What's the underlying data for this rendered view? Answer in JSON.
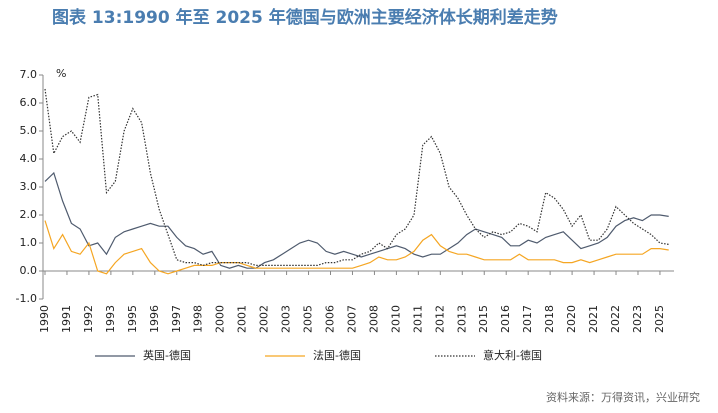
{
  "chart_data": {
    "type": "line",
    "title": "图表 13:1990 年至 2025 年德国与欧洲主要经济体长期利差走势",
    "y_unit": "%",
    "source": "资料来源：万得资讯，兴业研究",
    "x": [
      1990,
      1990.5,
      1991,
      1991.5,
      1992,
      1992.5,
      1993,
      1993.5,
      1994,
      1994.5,
      1995,
      1995.5,
      1996,
      1996.5,
      1997,
      1997.5,
      1998,
      1998.5,
      1999,
      1999.5,
      2000,
      2000.5,
      2001,
      2001.5,
      2002,
      2002.5,
      2003,
      2003.5,
      2004,
      2004.5,
      2005,
      2005.5,
      2006,
      2006.5,
      2007,
      2007.5,
      2008,
      2008.5,
      2009,
      2009.5,
      2010,
      2010.5,
      2011,
      2011.5,
      2012,
      2012.5,
      2013,
      2013.5,
      2014,
      2014.5,
      2015,
      2015.5,
      2016,
      2016.5,
      2017,
      2017.5,
      2018,
      2018.5,
      2019,
      2019.5,
      2020,
      2020.5,
      2021,
      2021.5,
      2022,
      2022.5,
      2023,
      2023.5,
      2024,
      2024.5,
      2025,
      2025.5
    ],
    "series": [
      {
        "name": "英国-德国",
        "color": "#4f5b6e",
        "dash": "none",
        "values": [
          3.2,
          3.5,
          2.5,
          1.7,
          1.5,
          0.9,
          1.0,
          0.6,
          1.2,
          1.4,
          1.5,
          1.6,
          1.7,
          1.6,
          1.6,
          1.2,
          0.9,
          0.8,
          0.6,
          0.7,
          0.2,
          0.1,
          0.2,
          0.1,
          0.1,
          0.3,
          0.4,
          0.6,
          0.8,
          1.0,
          1.1,
          1.0,
          0.7,
          0.6,
          0.7,
          0.6,
          0.5,
          0.6,
          0.7,
          0.8,
          0.9,
          0.8,
          0.6,
          0.5,
          0.6,
          0.6,
          0.8,
          1.0,
          1.3,
          1.5,
          1.4,
          1.3,
          1.2,
          0.9,
          0.9,
          1.1,
          1.0,
          1.2,
          1.3,
          1.4,
          1.1,
          0.8,
          0.9,
          1.0,
          1.2,
          1.6,
          1.8,
          1.9,
          1.8,
          2.0,
          2.0,
          1.95
        ]
      },
      {
        "name": "法国-德国",
        "color": "#f5a623",
        "dash": "none",
        "values": [
          1.8,
          0.8,
          1.3,
          0.7,
          0.6,
          1.0,
          0.0,
          -0.1,
          0.3,
          0.6,
          0.7,
          0.8,
          0.3,
          0.0,
          -0.1,
          0.0,
          0.1,
          0.2,
          0.2,
          0.2,
          0.3,
          0.3,
          0.3,
          0.2,
          0.1,
          0.1,
          0.1,
          0.1,
          0.1,
          0.1,
          0.1,
          0.1,
          0.1,
          0.1,
          0.1,
          0.1,
          0.2,
          0.3,
          0.5,
          0.4,
          0.4,
          0.5,
          0.7,
          1.1,
          1.3,
          0.9,
          0.7,
          0.6,
          0.6,
          0.5,
          0.4,
          0.4,
          0.4,
          0.4,
          0.6,
          0.4,
          0.4,
          0.4,
          0.4,
          0.3,
          0.3,
          0.4,
          0.3,
          0.4,
          0.5,
          0.6,
          0.6,
          0.6,
          0.6,
          0.8,
          0.8,
          0.75
        ]
      },
      {
        "name": "意大利-德国",
        "color": "#333333",
        "dash": "1.5 1.5",
        "values": [
          6.5,
          4.2,
          4.8,
          5.0,
          4.6,
          6.2,
          6.3,
          2.8,
          3.2,
          5.0,
          5.8,
          5.3,
          3.5,
          2.2,
          1.3,
          0.4,
          0.3,
          0.3,
          0.2,
          0.3,
          0.3,
          0.3,
          0.3,
          0.3,
          0.2,
          0.2,
          0.2,
          0.2,
          0.2,
          0.2,
          0.2,
          0.2,
          0.3,
          0.3,
          0.4,
          0.4,
          0.6,
          0.7,
          1.0,
          0.8,
          1.3,
          1.5,
          2.0,
          4.5,
          4.8,
          4.2,
          3.0,
          2.6,
          2.0,
          1.5,
          1.2,
          1.4,
          1.3,
          1.4,
          1.7,
          1.6,
          1.4,
          2.8,
          2.6,
          2.2,
          1.6,
          2.0,
          1.1,
          1.1,
          1.5,
          2.3,
          2.0,
          1.7,
          1.5,
          1.3,
          1.0,
          0.95
        ]
      }
    ],
    "xlim": [
      1990,
      2025.8
    ],
    "xticks": [
      1990,
      {
        "value": 1991.25,
        "label": "1991"
      },
      {
        "value": 1992.5,
        "label": "1992"
      },
      {
        "value": 1993.75,
        "label": "1993"
      },
      1995,
      {
        "value": 1996.25,
        "label": "1996"
      },
      {
        "value": 1997.5,
        "label": "1997"
      },
      {
        "value": 1998.75,
        "label": "1998"
      },
      2000,
      {
        "value": 2001.25,
        "label": "2001"
      },
      {
        "value": 2002.5,
        "label": "2002"
      },
      {
        "value": 2003.75,
        "label": "2003"
      },
      2005,
      {
        "value": 2006.25,
        "label": "2006"
      },
      {
        "value": 2007.5,
        "label": "2007"
      },
      {
        "value": 2008.75,
        "label": "2008"
      },
      2010,
      {
        "value": 2011.25,
        "label": "2011"
      },
      {
        "value": 2012.5,
        "label": "2012"
      },
      {
        "value": 2013.75,
        "label": "2013"
      },
      2015,
      {
        "value": 2016.25,
        "label": "2016"
      },
      {
        "value": 2017.5,
        "label": "2017"
      },
      {
        "value": 2018.75,
        "label": "2018"
      },
      2020,
      {
        "value": 2021.25,
        "label": "2021"
      },
      {
        "value": 2022.5,
        "label": "2022"
      },
      {
        "value": 2023.75,
        "label": "2023"
      },
      2025
    ],
    "ylim": [
      -1,
      7
    ],
    "yticks": [
      {
        "value": -1,
        "label": "-1.0"
      },
      {
        "value": 0,
        "label": "0.0"
      },
      {
        "value": 1,
        "label": "1.0"
      },
      {
        "value": 2,
        "label": "2.0"
      },
      {
        "value": 3,
        "label": "3.0"
      },
      {
        "value": 4,
        "label": "4.0"
      },
      {
        "value": 5,
        "label": "5.0"
      },
      {
        "value": 6,
        "label": "6.0"
      },
      {
        "value": 7,
        "label": "7.0"
      }
    ],
    "legend": "bottom"
  }
}
